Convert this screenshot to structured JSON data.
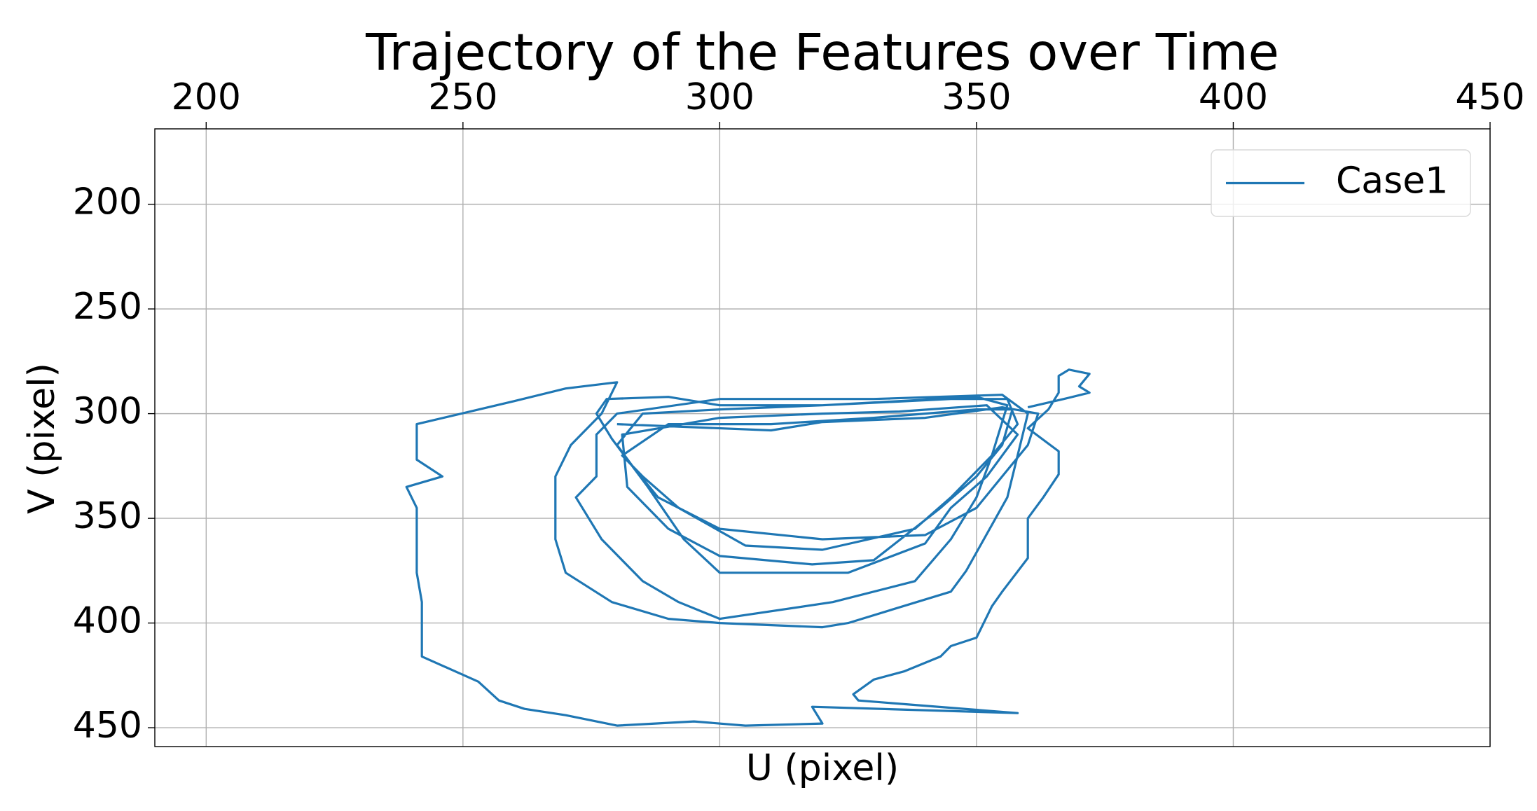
{
  "chart_data": {
    "type": "line",
    "title": "Trajectory of the Features over Time",
    "x_label": "U (pixel)",
    "y_label": "V (pixel)",
    "x": [
      280,
      310,
      320,
      340,
      355,
      362,
      360,
      355,
      350,
      340,
      320,
      300,
      288,
      283,
      280,
      285,
      300,
      320,
      345,
      356,
      358,
      353,
      345,
      338,
      320,
      305,
      292,
      285,
      281,
      290,
      310,
      330,
      350,
      357,
      355,
      350,
      343,
      330,
      318,
      300,
      290,
      282,
      281,
      300,
      320,
      335,
      352,
      358,
      352,
      345,
      340,
      325,
      300,
      293,
      286,
      279,
      276,
      278,
      290,
      300,
      320,
      350,
      356,
      353,
      350,
      345,
      338,
      322,
      300,
      292,
      285,
      277,
      272,
      276,
      276,
      280,
      300,
      330,
      355,
      360,
      358,
      356,
      348,
      345,
      325,
      320,
      300,
      290,
      279,
      270,
      268,
      268,
      271,
      277,
      280,
      270,
      260,
      241,
      241,
      246,
      239,
      241,
      241,
      242,
      242,
      253,
      257,
      262,
      270,
      280,
      295,
      305,
      320,
      318,
      358,
      327,
      326,
      330,
      336,
      343,
      345,
      350,
      353,
      355,
      360,
      360,
      363,
      366,
      366,
      360,
      364,
      366,
      366,
      368,
      372,
      370,
      372,
      367,
      360
    ],
    "series": [
      {
        "name": "Case1",
        "color": "#1f77b4",
        "values": [
          305,
          308,
          304,
          302,
          297,
          300,
          315,
          330,
          345,
          358,
          360,
          355,
          340,
          325,
          315,
          300,
          298,
          296,
          293,
          293,
          305,
          320,
          340,
          355,
          365,
          363,
          345,
          330,
          320,
          305,
          305,
          302,
          298,
          298,
          315,
          330,
          345,
          370,
          372,
          368,
          355,
          335,
          310,
          302,
          300,
          299,
          296,
          310,
          330,
          345,
          362,
          376,
          376,
          360,
          335,
          312,
          300,
          293,
          292,
          296,
          296,
          292,
          296,
          320,
          340,
          360,
          380,
          390,
          398,
          390,
          380,
          360,
          340,
          330,
          310,
          300,
          293,
          293,
          291,
          300,
          320,
          340,
          375,
          385,
          400,
          402,
          400,
          398,
          390,
          376,
          360,
          330,
          315,
          300,
          285,
          288,
          294,
          305,
          322,
          330,
          335,
          345,
          376,
          390,
          416,
          428,
          437,
          441,
          444,
          449,
          447,
          449,
          448,
          440,
          443,
          437,
          434,
          427,
          423,
          416,
          411,
          407,
          392,
          385,
          369,
          350,
          340,
          329,
          318,
          307,
          298,
          290,
          282,
          279,
          281,
          287,
          290,
          293,
          297
        ]
      }
    ],
    "xlim": [
      190,
      450
    ],
    "xticks": [
      200,
      250,
      300,
      350,
      400,
      450
    ],
    "ylim": [
      164,
      459
    ],
    "yticks": [
      200,
      250,
      300,
      350,
      400,
      450
    ],
    "y_inverted": true,
    "x_axis_position": "top",
    "grid": true,
    "legend": "upper right"
  }
}
